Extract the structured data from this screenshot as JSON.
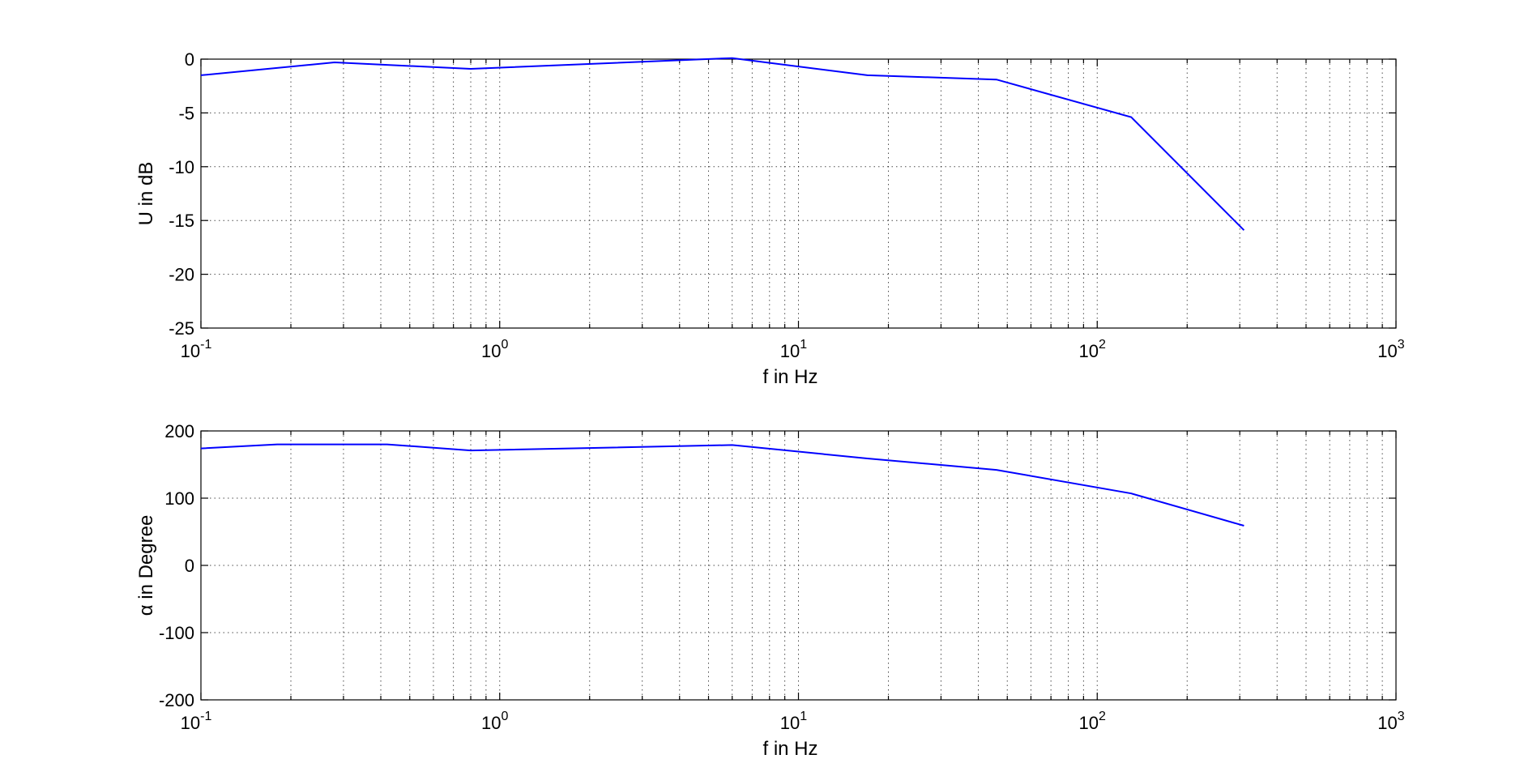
{
  "chart_data": [
    {
      "type": "line",
      "xscale": "log",
      "xlim": [
        0.1,
        1000
      ],
      "ylim": [
        -25,
        0
      ],
      "xlabel": "f in Hz",
      "ylabel": "U in dB",
      "grid": true,
      "x_ticks": [
        {
          "value": 0.1,
          "base": "10",
          "exp": "-1"
        },
        {
          "value": 1,
          "base": "10",
          "exp": "0"
        },
        {
          "value": 10,
          "base": "10",
          "exp": "1"
        },
        {
          "value": 100,
          "base": "10",
          "exp": "2"
        },
        {
          "value": 1000,
          "base": "10",
          "exp": "3"
        }
      ],
      "y_ticks": [
        0,
        -5,
        -10,
        -15,
        -20,
        -25
      ],
      "series": [
        {
          "color": "#0000ff",
          "x": [
            0.1,
            0.28,
            0.8,
            6,
            17,
            46,
            130,
            310
          ],
          "y": [
            -1.5,
            -0.3,
            -0.9,
            0.1,
            -1.5,
            -1.9,
            -5.4,
            -15.9
          ]
        }
      ]
    },
    {
      "type": "line",
      "xscale": "log",
      "xlim": [
        0.1,
        1000
      ],
      "ylim": [
        -200,
        200
      ],
      "xlabel": "f in Hz",
      "ylabel": "α in Degree",
      "grid": true,
      "x_ticks": [
        {
          "value": 0.1,
          "base": "10",
          "exp": "-1"
        },
        {
          "value": 1,
          "base": "10",
          "exp": "0"
        },
        {
          "value": 10,
          "base": "10",
          "exp": "1"
        },
        {
          "value": 100,
          "base": "10",
          "exp": "2"
        },
        {
          "value": 1000,
          "base": "10",
          "exp": "3"
        }
      ],
      "y_ticks": [
        200,
        100,
        0,
        -100,
        -200
      ],
      "series": [
        {
          "color": "#0000ff",
          "x": [
            0.1,
            0.18,
            0.42,
            0.8,
            6,
            17,
            46,
            130,
            310
          ],
          "y": [
            174,
            180,
            180,
            171,
            179,
            159,
            142,
            107,
            59
          ]
        }
      ]
    }
  ]
}
